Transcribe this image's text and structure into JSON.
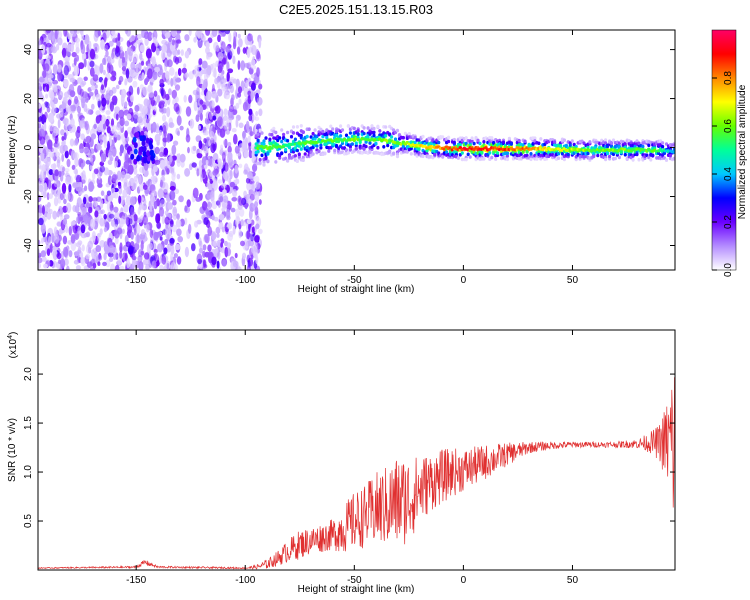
{
  "title": "C2E5.2025.151.13.15.R03",
  "chart_data": [
    {
      "type": "heatmap",
      "xlabel": "Height of straight line (km)",
      "ylabel": "Frequency (Hz)",
      "xlim": [
        -195,
        97
      ],
      "ylim": [
        -50,
        48
      ],
      "x_ticks": [
        -150,
        -100,
        -50,
        0,
        50
      ],
      "y_ticks": [
        -40,
        -20,
        0,
        20,
        40
      ],
      "colorbar": {
        "label": "Normalized spectral amplitude",
        "range": [
          0,
          1
        ],
        "ticks": [
          "0.0",
          "0.2",
          "0.4",
          "0.6",
          "0.8"
        ],
        "colors": [
          "#ffffff",
          "#b48cff",
          "#6a00ff",
          "#0000ff",
          "#00c8ff",
          "#00ff99",
          "#66ff00",
          "#ffff00",
          "#ff8800",
          "#ff0000",
          "#ff0066"
        ]
      },
      "ridge": {
        "x": [
          -95,
          -90,
          -85,
          -80,
          -75,
          -70,
          -65,
          -60,
          -55,
          -50,
          -45,
          -40,
          -35,
          -30,
          -25,
          -20,
          -15,
          -10,
          -5,
          0,
          10,
          20,
          30,
          40,
          50,
          60,
          70,
          80,
          90,
          95
        ],
        "freq": [
          0,
          0,
          0.5,
          1,
          1.5,
          2,
          2.5,
          3,
          3,
          3.5,
          3.5,
          3,
          3,
          2,
          1.5,
          0.5,
          0,
          0,
          -0.5,
          -0.5,
          -0.5,
          -0.5,
          -0.5,
          -0.5,
          -0.8,
          -1,
          -1,
          -1,
          -1.2,
          -1.5
        ],
        "amplitude": [
          0.55,
          0.6,
          0.55,
          0.5,
          0.55,
          0.6,
          0.55,
          0.6,
          0.55,
          0.6,
          0.55,
          0.55,
          0.6,
          0.6,
          0.65,
          0.7,
          0.75,
          0.8,
          0.85,
          0.9,
          0.9,
          0.85,
          0.8,
          0.7,
          0.65,
          0.6,
          0.6,
          0.6,
          0.55,
          0.4
        ]
      }
    },
    {
      "type": "line",
      "xlabel": "Height of straight line (km)",
      "ylabel": "SNR (10 * v/v)",
      "y_multiplier": "(x10",
      "y_multiplier_exp": "4",
      "y_multiplier_close": ")",
      "xlim": [
        -195,
        97
      ],
      "ylim": [
        0,
        2.45
      ],
      "x_ticks": [
        -150,
        -100,
        -50,
        0,
        50
      ],
      "y_ticks": [
        "0.5",
        "1.0",
        "1.5",
        "2.0"
      ],
      "line_color": "#e03030",
      "envelope": {
        "x": [
          -195,
          -150,
          -146,
          -140,
          -100,
          -95,
          -90,
          -85,
          -80,
          -75,
          -70,
          -60,
          -55,
          -50,
          -45,
          -40,
          -35,
          -30,
          -25,
          -20,
          -15,
          -10,
          -5,
          0,
          5,
          10,
          20,
          30,
          40,
          50,
          60,
          70,
          80,
          85,
          88,
          90,
          92,
          94,
          95,
          96,
          97
        ],
        "y": [
          0.02,
          0.03,
          0.08,
          0.03,
          0.02,
          0.03,
          0.06,
          0.12,
          0.2,
          0.26,
          0.3,
          0.36,
          0.42,
          0.5,
          0.55,
          0.62,
          0.65,
          0.7,
          0.72,
          0.82,
          0.9,
          0.95,
          1.0,
          1.02,
          1.06,
          1.1,
          1.18,
          1.25,
          1.27,
          1.28,
          1.28,
          1.28,
          1.29,
          1.3,
          1.3,
          1.3,
          1.3,
          1.3,
          1.3,
          1.3,
          1.25
        ],
        "noise": [
          0.005,
          0.01,
          0.03,
          0.01,
          0.008,
          0.02,
          0.05,
          0.08,
          0.12,
          0.15,
          0.14,
          0.16,
          0.25,
          0.3,
          0.32,
          0.38,
          0.42,
          0.48,
          0.45,
          0.35,
          0.3,
          0.28,
          0.25,
          0.22,
          0.2,
          0.18,
          0.12,
          0.06,
          0.04,
          0.03,
          0.03,
          0.03,
          0.05,
          0.1,
          0.15,
          0.2,
          0.35,
          0.5,
          0.7,
          0.9,
          1.0
        ]
      }
    }
  ]
}
